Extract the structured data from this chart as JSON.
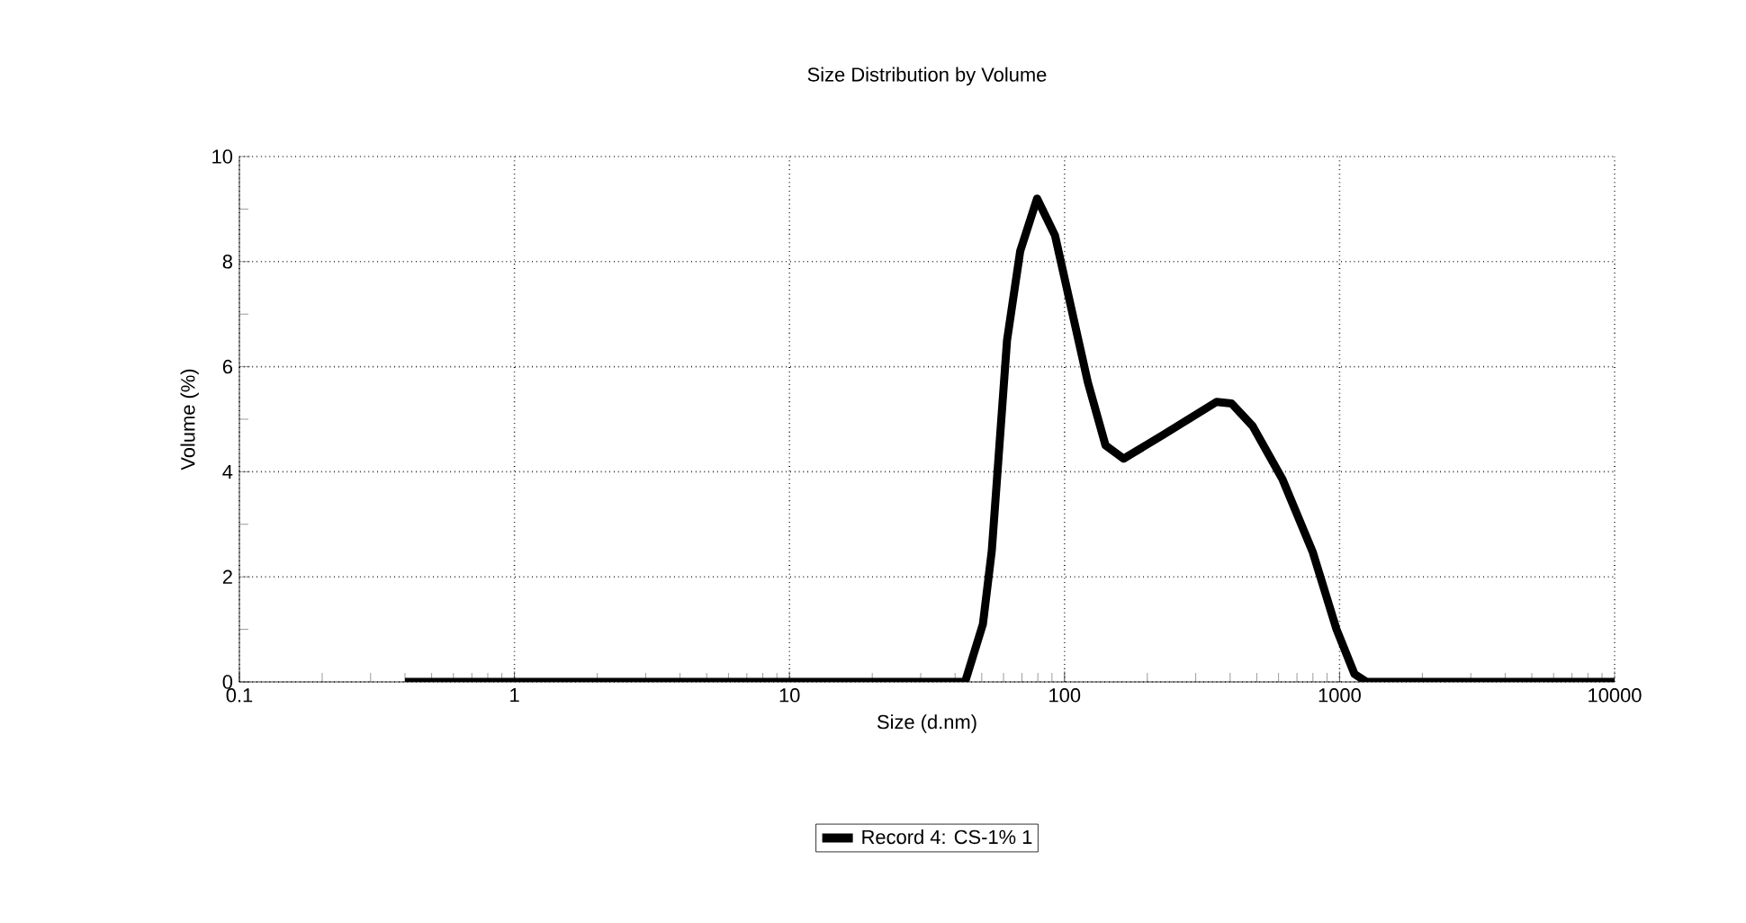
{
  "chart_data": {
    "type": "line",
    "title": "Size Distribution by Volume",
    "xlabel": "Size (d.nm)",
    "ylabel": "Volume (%)",
    "log": "x",
    "xlim": [
      0.1,
      10000
    ],
    "xticks": [
      0.1,
      1,
      10,
      100,
      1000,
      10000
    ],
    "ylim": [
      0,
      10
    ],
    "yticks": [
      0,
      2,
      4,
      6,
      8,
      10
    ],
    "grid": true,
    "legend": "bottom",
    "marker": "none",
    "line_style": "solid",
    "series": [
      {
        "name": "Record 4: CS-1% 1",
        "color": "#000000",
        "x": [
          0.4,
          43.5,
          50.5,
          54.4,
          61.8,
          69,
          79.5,
          92.3,
          121.6,
          141,
          164,
          228,
          357,
          405,
          483,
          621,
          798,
          975,
          1133,
          1254,
          10000
        ],
        "values": [
          0,
          0,
          1.1,
          2.5,
          6.5,
          8.2,
          9.2,
          8.5,
          5.7,
          4.5,
          4.25,
          4.7,
          5.33,
          5.3,
          4.87,
          3.85,
          2.48,
          1.0,
          0.15,
          0,
          0
        ]
      }
    ]
  }
}
